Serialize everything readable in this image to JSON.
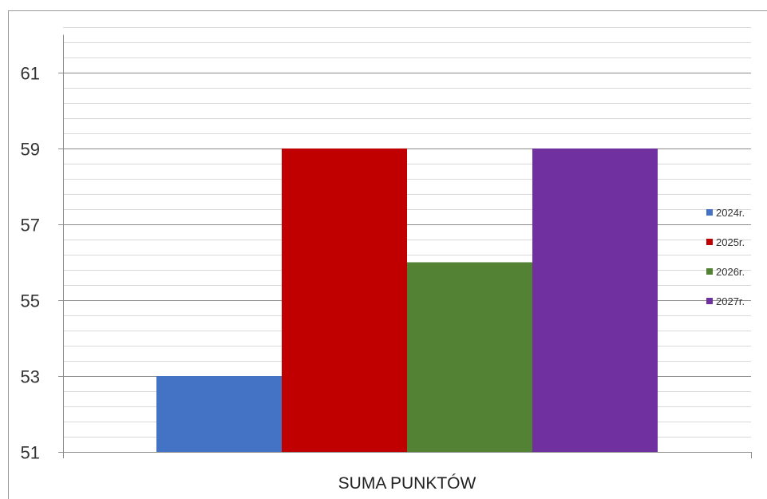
{
  "chart_data": {
    "type": "bar",
    "title": "",
    "xlabel": "",
    "ylabel": "",
    "categories": [
      "SUMA PUNKTÓW"
    ],
    "series": [
      {
        "name": "2024r.",
        "values": [
          53
        ],
        "color": "#4472c4"
      },
      {
        "name": "2025r.",
        "values": [
          59
        ],
        "color": "#c00000"
      },
      {
        "name": "2026r.",
        "values": [
          56
        ],
        "color": "#548235"
      },
      {
        "name": "2027r.",
        "values": [
          59
        ],
        "color": "#7030a0"
      }
    ],
    "ylim": [
      51,
      62
    ],
    "y_ticks": [
      51,
      53,
      55,
      57,
      59,
      61
    ],
    "y_minor_step": 0.4,
    "grid": true,
    "legend_position": "right"
  }
}
